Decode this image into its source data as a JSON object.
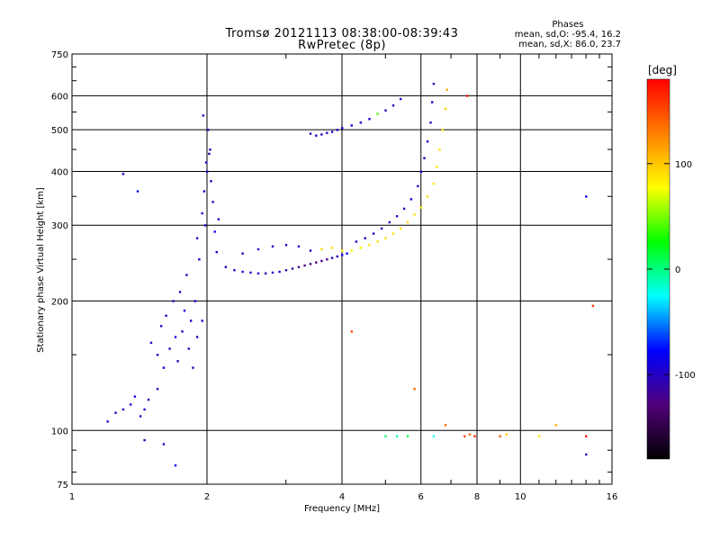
{
  "header": {
    "title_line1": "Tromsø 20121113 08:38:00-08:39:43",
    "title_line2": "RwPretec (8p)"
  },
  "stats": {
    "heading": "Phases",
    "line_o": "mean, sd,O: -95.4, 16.2",
    "line_x": "mean, sd,X: 86.0, 23.7"
  },
  "colorbar": {
    "unit_label": "[deg]",
    "range": [
      -180,
      180
    ],
    "ticks": [
      {
        "value": 100,
        "label": "100"
      },
      {
        "value": 0,
        "label": "0"
      },
      {
        "value": -100,
        "label": "-100"
      }
    ],
    "stops": [
      "#000000",
      "#50007a",
      "#0000ff",
      "#00ffff",
      "#00ff00",
      "#ffff00",
      "#ff8000",
      "#ff0000"
    ]
  },
  "chart_data": {
    "type": "scatter",
    "title": "Tromsø 20121113 08:38:00-08:39:43 RwPretec (8p)",
    "xlabel": "Frequency [MHz]",
    "ylabel": "Stationary phase Virtual Height [km]",
    "x_scale": "log",
    "y_scale": "log",
    "xlim": [
      1,
      16
    ],
    "ylim": [
      75,
      750
    ],
    "grid": true,
    "x_ticks": [
      {
        "value": 1,
        "label": "1"
      },
      {
        "value": 2,
        "label": "2"
      },
      {
        "value": 4,
        "label": "4"
      },
      {
        "value": 6,
        "label": "6"
      },
      {
        "value": 8,
        "label": "8"
      },
      {
        "value": 10,
        "label": "10"
      },
      {
        "value": 16,
        "label": "16"
      }
    ],
    "y_ticks": [
      {
        "value": 75,
        "label": "75"
      },
      {
        "value": 100,
        "label": "100"
      },
      {
        "value": 200,
        "label": "200"
      },
      {
        "value": 300,
        "label": "300"
      },
      {
        "value": 400,
        "label": "400"
      },
      {
        "value": 500,
        "label": "500"
      },
      {
        "value": 600,
        "label": "600"
      },
      {
        "value": 750,
        "label": "750"
      }
    ],
    "points": [
      [
        1.2,
        105,
        -100
      ],
      [
        1.25,
        110,
        -100
      ],
      [
        1.3,
        112,
        -95
      ],
      [
        1.35,
        115,
        -100
      ],
      [
        1.38,
        120,
        -90
      ],
      [
        1.42,
        108,
        -100
      ],
      [
        1.45,
        112,
        -95
      ],
      [
        1.48,
        118,
        -100
      ],
      [
        1.3,
        395,
        -100
      ],
      [
        1.4,
        360,
        -80
      ],
      [
        1.45,
        95,
        -100
      ],
      [
        1.6,
        93,
        -95
      ],
      [
        1.7,
        83,
        -80
      ],
      [
        1.55,
        125,
        -100
      ],
      [
        1.5,
        160,
        -100
      ],
      [
        1.55,
        150,
        -95
      ],
      [
        1.58,
        175,
        -100
      ],
      [
        1.6,
        140,
        -90
      ],
      [
        1.62,
        185,
        -100
      ],
      [
        1.65,
        155,
        -95
      ],
      [
        1.68,
        200,
        -100
      ],
      [
        1.7,
        165,
        -90
      ],
      [
        1.72,
        145,
        -100
      ],
      [
        1.74,
        210,
        -95
      ],
      [
        1.76,
        170,
        -100
      ],
      [
        1.78,
        190,
        -90
      ],
      [
        1.8,
        230,
        -100
      ],
      [
        1.82,
        155,
        -100
      ],
      [
        1.84,
        180,
        -95
      ],
      [
        1.86,
        140,
        -100
      ],
      [
        1.88,
        200,
        -90
      ],
      [
        1.9,
        165,
        -100
      ],
      [
        1.92,
        250,
        -100
      ],
      [
        1.95,
        180,
        -95
      ],
      [
        1.9,
        280,
        -100
      ],
      [
        1.95,
        320,
        -95
      ],
      [
        1.97,
        360,
        -90
      ],
      [
        2.0,
        400,
        -100
      ],
      [
        2.02,
        440,
        -100
      ],
      [
        2.04,
        380,
        -95
      ],
      [
        2.06,
        340,
        -100
      ],
      [
        1.98,
        300,
        -100
      ],
      [
        2.01,
        500,
        -95
      ],
      [
        1.96,
        540,
        -100
      ],
      [
        2.08,
        290,
        -90
      ],
      [
        2.1,
        260,
        -100
      ],
      [
        2.12,
        310,
        -95
      ],
      [
        2.03,
        450,
        -100
      ],
      [
        1.99,
        420,
        -90
      ],
      [
        2.2,
        240,
        -100
      ],
      [
        2.3,
        236,
        -100
      ],
      [
        2.4,
        234,
        -95
      ],
      [
        2.5,
        233,
        -100
      ],
      [
        2.6,
        232,
        -95
      ],
      [
        2.7,
        232,
        -100
      ],
      [
        2.8,
        233,
        -100
      ],
      [
        2.9,
        234,
        -95
      ],
      [
        3.0,
        236,
        -110
      ],
      [
        3.1,
        238,
        -115
      ],
      [
        3.2,
        240,
        -120
      ],
      [
        3.3,
        242,
        -125
      ],
      [
        3.4,
        244,
        -125
      ],
      [
        3.5,
        246,
        -130
      ],
      [
        3.6,
        248,
        -125
      ],
      [
        3.7,
        250,
        -120
      ],
      [
        3.8,
        252,
        -110
      ],
      [
        3.9,
        254,
        -100
      ],
      [
        4.0,
        256,
        -90
      ],
      [
        4.1,
        258,
        -80
      ],
      [
        2.4,
        258,
        -100
      ],
      [
        2.6,
        264,
        -95
      ],
      [
        2.8,
        268,
        -100
      ],
      [
        3.0,
        270,
        -100
      ],
      [
        3.2,
        268,
        -95
      ],
      [
        3.4,
        262,
        -100
      ],
      [
        3.6,
        264,
        95
      ],
      [
        3.8,
        266,
        90
      ],
      [
        4.0,
        262,
        80
      ],
      [
        4.2,
        262,
        80
      ],
      [
        4.4,
        266,
        82
      ],
      [
        4.6,
        270,
        85
      ],
      [
        4.8,
        275,
        86
      ],
      [
        5.0,
        280,
        88
      ],
      [
        5.2,
        287,
        90
      ],
      [
        5.4,
        295,
        92
      ],
      [
        5.6,
        305,
        95
      ],
      [
        5.8,
        318,
        90
      ],
      [
        6.0,
        330,
        85
      ],
      [
        6.2,
        350,
        90
      ],
      [
        6.4,
        375,
        88
      ],
      [
        6.5,
        410,
        86
      ],
      [
        6.6,
        450,
        88
      ],
      [
        6.7,
        500,
        90
      ],
      [
        6.8,
        560,
        100
      ],
      [
        6.85,
        620,
        110
      ],
      [
        4.3,
        275,
        -100
      ],
      [
        4.5,
        280,
        -100
      ],
      [
        4.7,
        287,
        -95
      ],
      [
        4.9,
        295,
        -100
      ],
      [
        5.1,
        305,
        -95
      ],
      [
        5.3,
        315,
        -100
      ],
      [
        5.5,
        328,
        -100
      ],
      [
        5.7,
        345,
        -95
      ],
      [
        5.9,
        370,
        -100
      ],
      [
        6.0,
        400,
        -100
      ],
      [
        6.1,
        430,
        -95
      ],
      [
        6.2,
        470,
        -100
      ],
      [
        6.3,
        520,
        -100
      ],
      [
        6.35,
        580,
        -95
      ],
      [
        6.4,
        640,
        -100
      ],
      [
        3.4,
        490,
        -100
      ],
      [
        3.5,
        485,
        -95
      ],
      [
        3.6,
        488,
        -100
      ],
      [
        3.7,
        492,
        -100
      ],
      [
        3.8,
        495,
        -95
      ],
      [
        3.9,
        500,
        -100
      ],
      [
        4.0,
        505,
        -90
      ],
      [
        4.2,
        512,
        -95
      ],
      [
        4.4,
        520,
        -100
      ],
      [
        4.6,
        530,
        -90
      ],
      [
        4.8,
        545,
        40
      ],
      [
        5.0,
        555,
        -100
      ],
      [
        5.2,
        570,
        -95
      ],
      [
        5.4,
        590,
        -100
      ],
      [
        5.0,
        97,
        0
      ],
      [
        5.3,
        97,
        -10
      ],
      [
        5.6,
        97,
        10
      ],
      [
        6.4,
        97,
        -20
      ],
      [
        6.8,
        103,
        140
      ],
      [
        7.5,
        97,
        150
      ],
      [
        7.7,
        98,
        140
      ],
      [
        7.9,
        97,
        160
      ],
      [
        9.0,
        97,
        140
      ],
      [
        9.3,
        98,
        100
      ],
      [
        11.0,
        97,
        90
      ],
      [
        12.0,
        103,
        110
      ],
      [
        14.0,
        88,
        -100
      ],
      [
        14.0,
        97,
        170
      ],
      [
        4.2,
        170,
        150
      ],
      [
        5.8,
        125,
        140
      ],
      [
        14.5,
        195,
        160
      ],
      [
        14.0,
        350,
        -80
      ],
      [
        7.6,
        600,
        170
      ]
    ]
  }
}
